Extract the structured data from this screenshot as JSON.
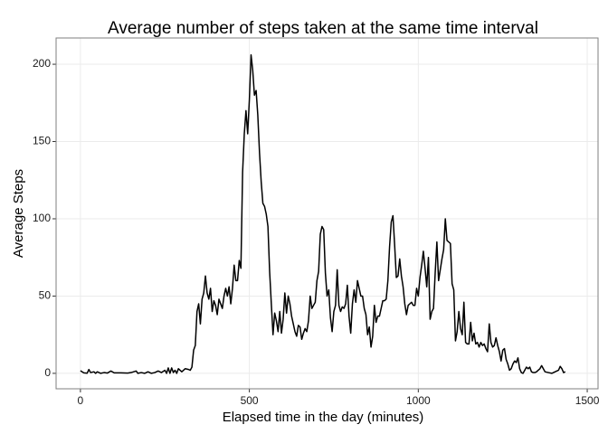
{
  "chart_data": {
    "type": "line",
    "title": "Average number of steps taken at the same time interval",
    "x_label": "Elapsed time in the day (minutes)",
    "y_label": "Average Steps",
    "x": [
      0,
      10,
      20,
      25,
      30,
      40,
      45,
      50,
      60,
      70,
      80,
      90,
      100,
      120,
      140,
      150,
      165,
      170,
      180,
      190,
      200,
      210,
      220,
      230,
      240,
      250,
      255,
      260,
      265,
      270,
      275,
      280,
      285,
      290,
      300,
      310,
      320,
      325,
      330,
      335,
      340,
      345,
      350,
      355,
      360,
      365,
      370,
      375,
      380,
      385,
      390,
      395,
      400,
      405,
      410,
      415,
      420,
      425,
      430,
      435,
      440,
      445,
      450,
      455,
      460,
      465,
      470,
      475,
      480,
      485,
      490,
      495,
      500,
      505,
      510,
      515,
      520,
      525,
      530,
      535,
      540,
      545,
      550,
      555,
      560,
      565,
      570,
      575,
      580,
      585,
      590,
      595,
      600,
      605,
      610,
      615,
      620,
      625,
      630,
      635,
      640,
      645,
      650,
      655,
      660,
      665,
      670,
      675,
      680,
      685,
      690,
      695,
      700,
      705,
      710,
      715,
      720,
      725,
      730,
      735,
      740,
      745,
      750,
      755,
      760,
      765,
      770,
      775,
      780,
      785,
      790,
      795,
      800,
      805,
      810,
      815,
      820,
      825,
      830,
      835,
      840,
      845,
      850,
      855,
      860,
      865,
      870,
      875,
      880,
      885,
      890,
      895,
      900,
      905,
      910,
      915,
      920,
      925,
      930,
      935,
      940,
      945,
      950,
      955,
      960,
      965,
      970,
      975,
      980,
      985,
      990,
      995,
      1000,
      1005,
      1010,
      1015,
      1020,
      1025,
      1030,
      1035,
      1040,
      1045,
      1050,
      1055,
      1060,
      1065,
      1070,
      1075,
      1080,
      1085,
      1090,
      1095,
      1100,
      1105,
      1110,
      1115,
      1120,
      1125,
      1130,
      1135,
      1140,
      1145,
      1150,
      1155,
      1160,
      1165,
      1170,
      1175,
      1180,
      1185,
      1190,
      1195,
      1200,
      1205,
      1210,
      1215,
      1220,
      1225,
      1230,
      1235,
      1240,
      1245,
      1250,
      1255,
      1260,
      1265,
      1270,
      1275,
      1280,
      1285,
      1290,
      1295,
      1300,
      1305,
      1310,
      1315,
      1320,
      1325,
      1330,
      1335,
      1340,
      1345,
      1350,
      1355,
      1360,
      1365,
      1370,
      1375,
      1385,
      1395,
      1405,
      1415,
      1420,
      1425,
      1430,
      1435
    ],
    "series": [
      {
        "color": "#000000",
        "values": [
          1.7,
          0.3,
          0.1,
          2.5,
          0.5,
          1,
          0,
          1,
          0,
          0.5,
          0.2,
          1.5,
          0.3,
          0.3,
          0.2,
          0.5,
          1.5,
          0,
          0.5,
          0,
          1,
          0,
          0.5,
          1.5,
          0.5,
          2,
          0,
          3.5,
          0,
          3.5,
          0.5,
          2,
          0,
          3,
          1,
          3,
          2.5,
          2,
          4,
          15,
          18,
          40,
          45,
          32,
          48,
          52,
          63,
          52,
          48,
          55,
          40,
          47,
          44,
          38,
          48,
          45,
          42,
          50,
          55,
          50,
          56,
          45,
          55,
          70,
          60,
          60,
          73,
          68,
          130,
          155,
          170,
          155,
          177,
          206,
          196,
          180,
          183,
          167,
          143,
          124,
          110,
          108,
          103,
          95,
          66,
          45,
          25,
          39,
          34,
          27,
          40,
          26,
          35,
          52,
          39,
          50,
          45,
          37,
          32,
          27,
          24,
          31,
          30,
          22,
          26,
          29,
          27,
          34,
          50,
          42,
          44,
          46,
          60,
          66,
          90,
          95,
          93,
          65,
          50,
          54,
          36,
          27,
          40,
          44,
          67,
          44,
          40,
          43,
          42,
          45,
          57,
          37,
          26,
          45,
          54,
          46,
          60,
          55,
          50,
          50,
          42,
          38,
          25,
          30,
          17,
          24,
          44,
          33,
          37,
          37,
          42,
          47,
          47,
          48,
          60,
          82,
          98,
          102,
          83,
          62,
          63,
          74,
          63,
          56,
          45,
          38,
          44,
          45,
          46,
          44,
          44,
          55,
          50,
          62,
          70,
          79,
          68,
          56,
          75,
          35,
          40,
          42,
          65,
          85,
          60,
          67,
          74,
          80,
          100,
          86,
          85,
          84,
          58,
          54,
          21,
          27,
          40,
          29,
          25,
          46,
          20,
          19,
          19,
          33,
          21,
          26,
          19,
          20,
          17,
          20,
          18,
          19,
          16,
          14,
          32,
          20,
          17,
          18,
          23,
          18,
          14,
          8,
          15,
          16,
          9,
          6,
          2,
          3,
          6,
          8,
          7,
          10,
          3,
          0.5,
          0,
          2,
          4,
          3,
          4,
          1,
          0.5,
          0.5,
          1,
          2,
          3,
          5,
          3,
          1,
          0.5,
          0,
          1,
          2,
          4.5,
          3,
          0.5,
          1
        ]
      }
    ],
    "xlim": [
      -72,
      1532
    ],
    "ylim": [
      -10,
      217
    ],
    "xticks": [
      0,
      500,
      1000,
      1500
    ],
    "yticks": [
      0,
      50,
      100,
      150,
      200
    ],
    "grid": true
  }
}
